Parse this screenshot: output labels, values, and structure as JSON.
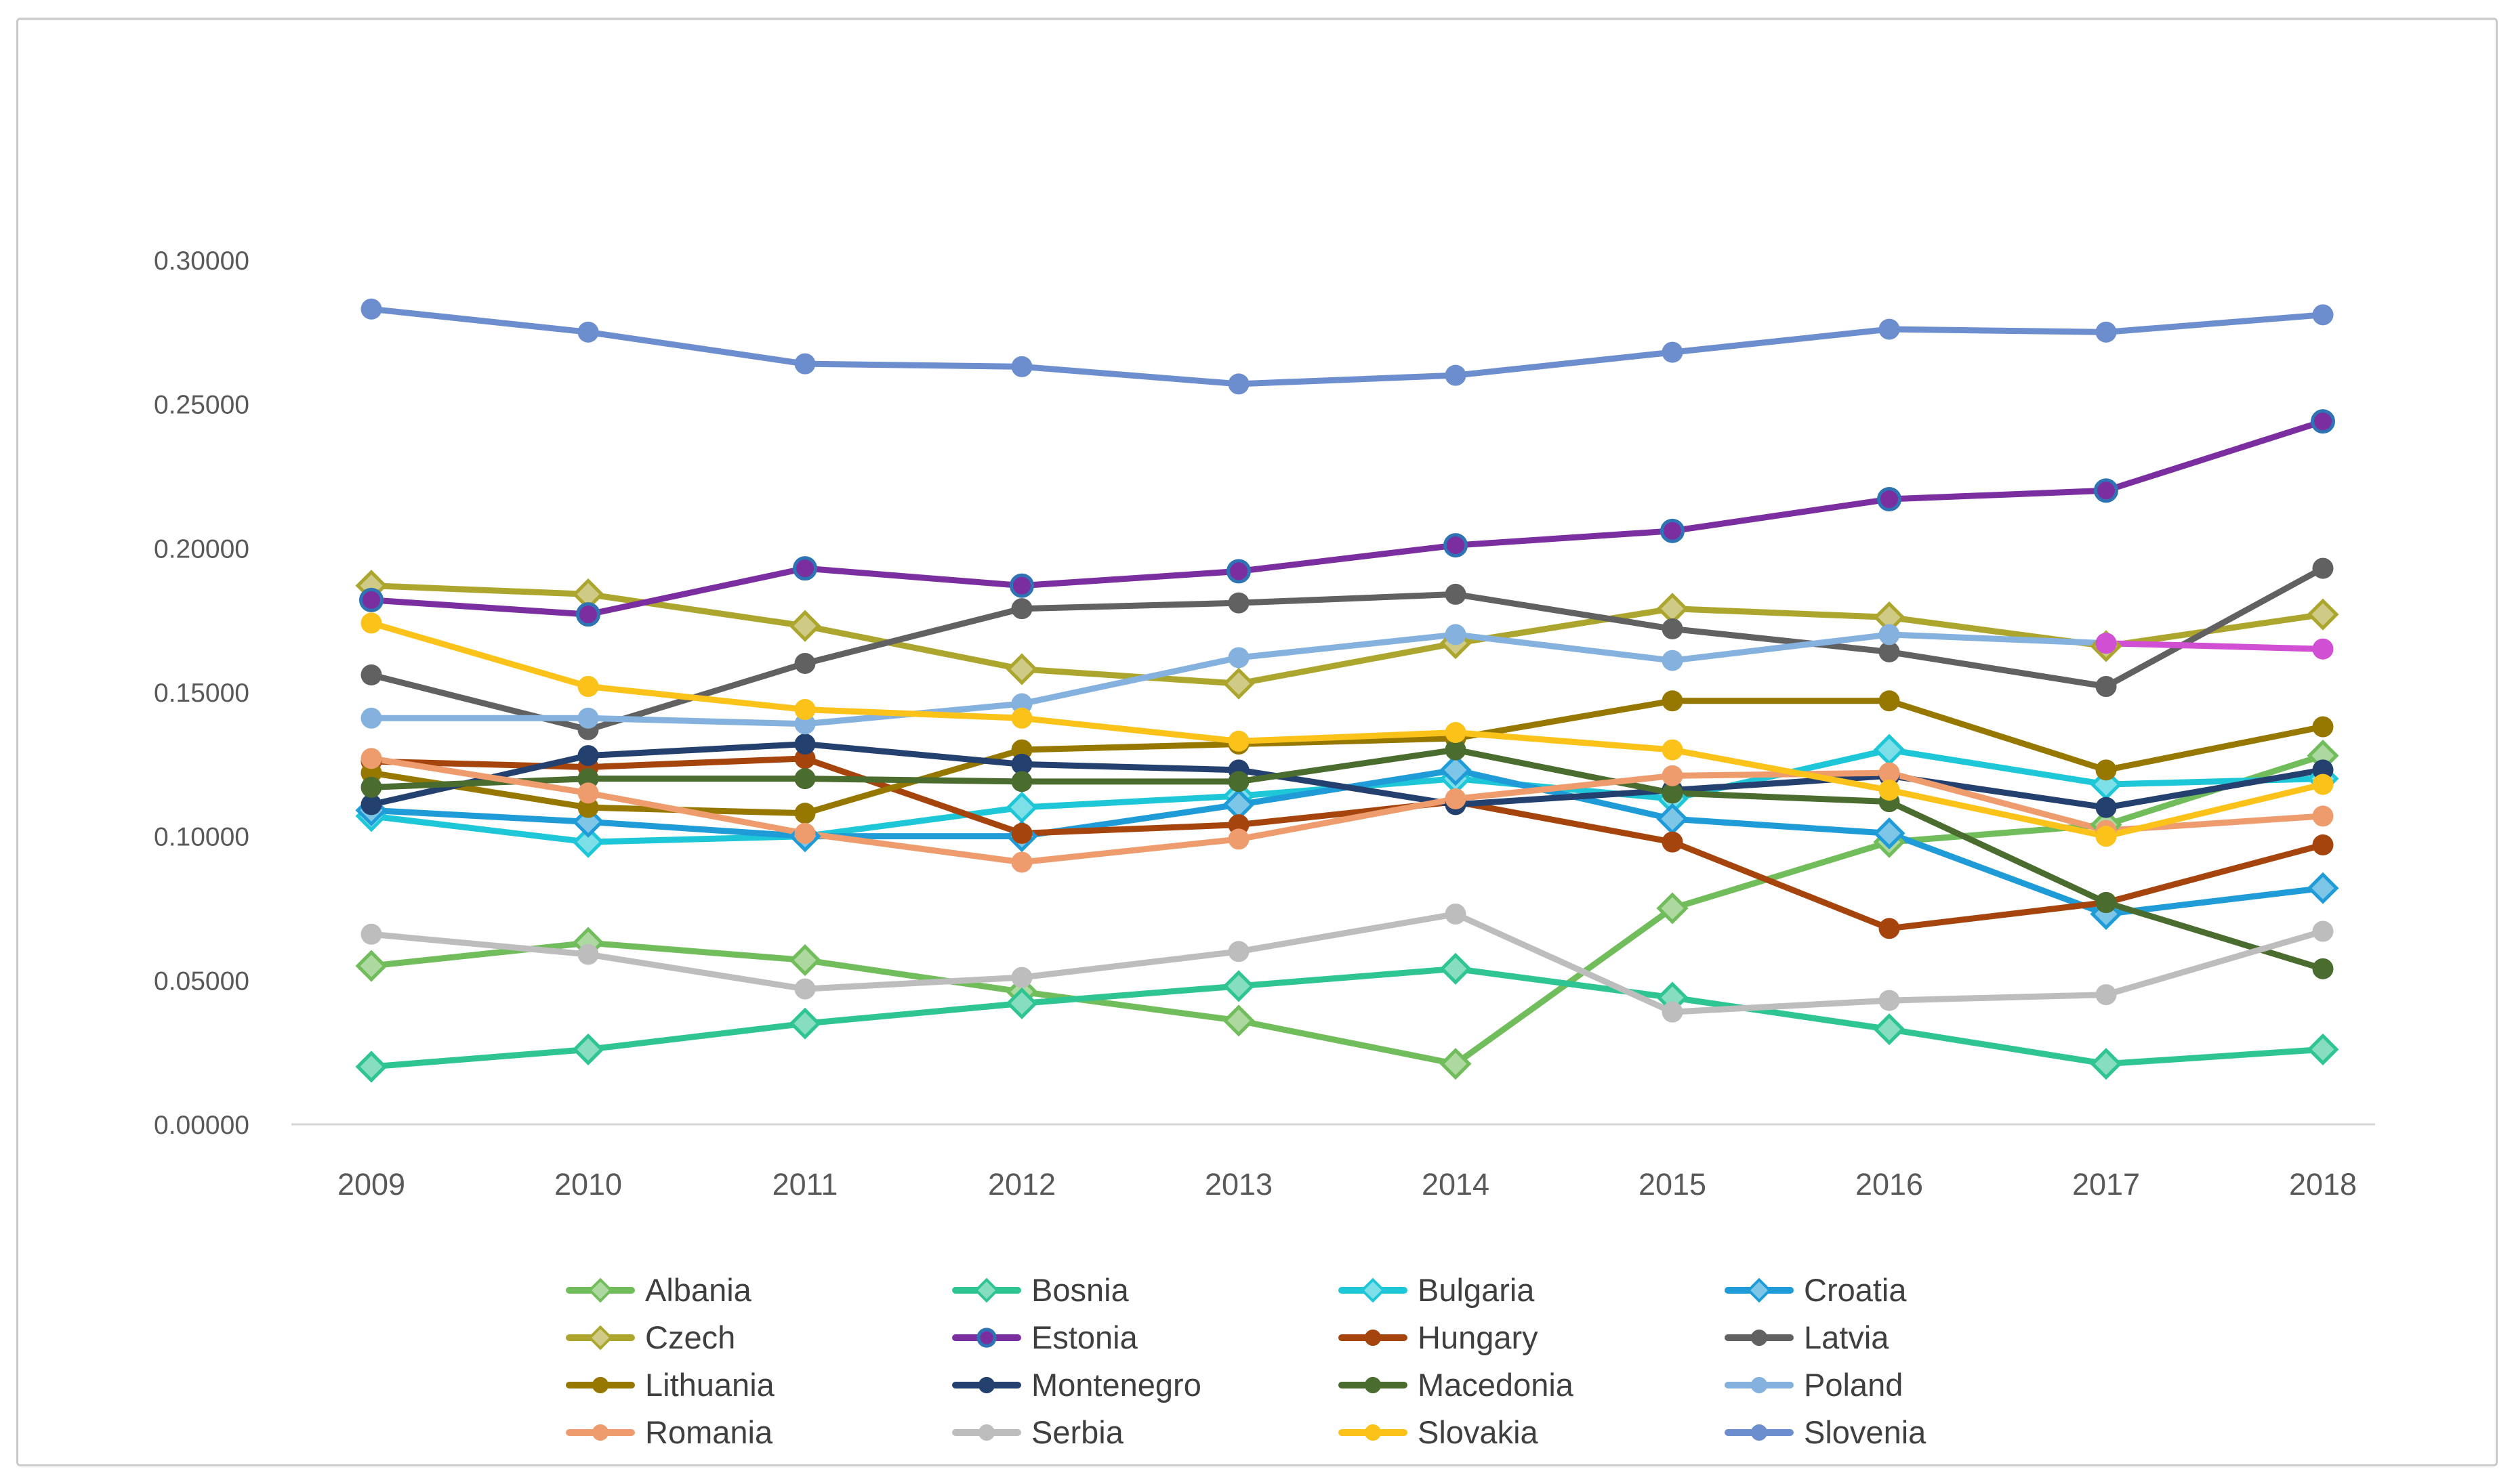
{
  "window": {
    "kind": "chart-screenshot"
  },
  "chart_data": {
    "type": "line",
    "title": "",
    "xlabel": "",
    "ylabel": "",
    "x_categories": [
      "2009",
      "2010",
      "2011",
      "2012",
      "2013",
      "2014",
      "2015",
      "2016",
      "2017",
      "2018"
    ],
    "ylim": [
      0.0,
      0.3
    ],
    "y_tick_step": 0.05,
    "y_tick_labels": [
      "0.00000",
      "0.05000",
      "0.10000",
      "0.15000",
      "0.20000",
      "0.25000",
      "0.30000"
    ],
    "grid": false,
    "legend_position": "bottom",
    "legend_columns": 4,
    "axis_color": "#d6d6d6",
    "tick_label_color": "#595959",
    "legend_label_color": "#3f3f3f",
    "series": [
      {
        "name": "Albania",
        "color": "#71bd5b",
        "marker": "diamond",
        "values": [
          0.055,
          0.063,
          0.057,
          0.046,
          0.036,
          0.021,
          0.075,
          0.098,
          0.104,
          0.128
        ]
      },
      {
        "name": "Bosnia",
        "color": "#2ec593",
        "marker": "diamond",
        "values": [
          0.02,
          0.026,
          0.035,
          0.042,
          0.048,
          0.054,
          0.044,
          0.033,
          0.021,
          0.026
        ]
      },
      {
        "name": "Bulgaria",
        "color": "#1ec7d8",
        "marker": "diamond",
        "values": [
          0.107,
          0.098,
          0.1,
          0.11,
          0.114,
          0.12,
          0.113,
          0.13,
          0.118,
          0.12
        ]
      },
      {
        "name": "Croatia",
        "color": "#1f9cd8",
        "marker": "diamond",
        "values": [
          0.109,
          0.105,
          0.1,
          0.1,
          0.111,
          0.123,
          0.106,
          0.101,
          0.073,
          0.082
        ]
      },
      {
        "name": "Czech",
        "color": "#ada62e",
        "marker": "diamond",
        "values": [
          0.187,
          0.184,
          0.173,
          0.158,
          0.153,
          0.167,
          0.179,
          0.176,
          0.166,
          0.177
        ]
      },
      {
        "name": "Estonia",
        "color": "#7a2ea0",
        "marker": "circle",
        "marker_stroke": "#2e74b5",
        "values": [
          0.182,
          0.177,
          0.193,
          0.187,
          0.192,
          0.201,
          0.206,
          0.217,
          0.22,
          0.244
        ]
      },
      {
        "name": "Hungary",
        "color": "#a5450d",
        "marker": "circle",
        "values": [
          0.126,
          0.124,
          0.127,
          0.101,
          0.104,
          0.112,
          0.098,
          0.068,
          0.077,
          0.097
        ]
      },
      {
        "name": "Latvia",
        "color": "#616161",
        "marker": "circle",
        "values": [
          0.156,
          0.137,
          0.16,
          0.179,
          0.181,
          0.184,
          0.172,
          0.164,
          0.152,
          0.193
        ]
      },
      {
        "name": "Lithuania",
        "color": "#967800",
        "marker": "circle",
        "values": [
          0.122,
          0.11,
          0.108,
          0.13,
          0.132,
          0.134,
          0.147,
          0.147,
          0.123,
          0.138
        ]
      },
      {
        "name": "Montenegro",
        "color": "#24406e",
        "marker": "circle",
        "values": [
          0.111,
          0.128,
          0.132,
          0.125,
          0.123,
          0.111,
          0.116,
          0.121,
          0.11,
          0.123
        ]
      },
      {
        "name": "Macedonia",
        "color": "#4a6d2f",
        "marker": "circle",
        "values": [
          0.117,
          0.12,
          0.12,
          0.119,
          0.119,
          0.13,
          0.115,
          0.112,
          0.077,
          0.054
        ]
      },
      {
        "name": "Poland",
        "color": "#85b1df",
        "marker": "circle",
        "values": [
          0.141,
          0.141,
          0.139,
          0.146,
          0.162,
          0.17,
          0.161,
          0.17,
          0.167,
          null
        ]
      },
      {
        "name": "Romania",
        "color": "#ee9c6d",
        "marker": "circle",
        "values": [
          0.127,
          0.115,
          0.101,
          0.091,
          0.099,
          0.113,
          0.121,
          0.122,
          0.102,
          0.107
        ]
      },
      {
        "name": "Serbia",
        "color": "#bdbdbd",
        "marker": "circle",
        "values": [
          0.066,
          0.059,
          0.047,
          0.051,
          0.06,
          0.073,
          0.039,
          0.043,
          0.045,
          0.067
        ]
      },
      {
        "name": "Slovakia",
        "color": "#fbc21a",
        "marker": "circle",
        "values": [
          0.174,
          0.152,
          0.144,
          0.141,
          0.133,
          0.136,
          0.13,
          0.116,
          0.1,
          0.118
        ]
      },
      {
        "name": "Slovenia",
        "color": "#6d8ece",
        "marker": "circle",
        "values": [
          0.283,
          0.275,
          0.264,
          0.263,
          0.257,
          0.26,
          0.268,
          0.276,
          0.275,
          0.281
        ]
      },
      {
        "name": "",
        "color": "#d04fd3",
        "marker": "circle",
        "in_legend": false,
        "values": [
          null,
          null,
          null,
          null,
          null,
          null,
          null,
          null,
          0.167,
          0.165
        ]
      }
    ]
  }
}
